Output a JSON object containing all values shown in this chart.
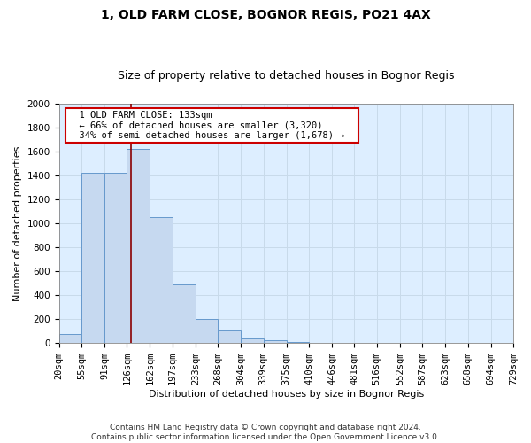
{
  "title": "1, OLD FARM CLOSE, BOGNOR REGIS, PO21 4AX",
  "subtitle": "Size of property relative to detached houses in Bognor Regis",
  "xlabel": "Distribution of detached houses by size in Bognor Regis",
  "ylabel": "Number of detached properties",
  "footer_line1": "Contains HM Land Registry data © Crown copyright and database right 2024.",
  "footer_line2": "Contains public sector information licensed under the Open Government Licence v3.0.",
  "annotation_line1": "1 OLD FARM CLOSE: 133sqm",
  "annotation_line2": "← 66% of detached houses are smaller (3,320)",
  "annotation_line3": "34% of semi-detached houses are larger (1,678) →",
  "property_sqm": 133,
  "bin_edges": [
    20,
    55,
    91,
    126,
    162,
    197,
    233,
    268,
    304,
    339,
    375,
    410,
    446,
    481,
    516,
    552,
    587,
    623,
    658,
    694,
    729
  ],
  "bar_heights": [
    75,
    1420,
    1420,
    1620,
    1050,
    490,
    205,
    105,
    35,
    25,
    10,
    5,
    3,
    2,
    1,
    1,
    0,
    0,
    0,
    0
  ],
  "bar_color": "#c6d9f0",
  "bar_edge_color": "#6699cc",
  "vline_color": "#8b0000",
  "vline_x": 133,
  "ylim": [
    0,
    2000
  ],
  "yticks": [
    0,
    200,
    400,
    600,
    800,
    1000,
    1200,
    1400,
    1600,
    1800,
    2000
  ],
  "grid_color": "#c8daea",
  "bg_color": "#ddeeff",
  "fig_bg_color": "#ffffff",
  "annotation_box_color": "#ffffff",
  "annotation_border_color": "#cc0000",
  "title_fontsize": 10,
  "subtitle_fontsize": 9,
  "axis_label_fontsize": 8,
  "tick_fontsize": 7.5,
  "footer_fontsize": 6.5
}
